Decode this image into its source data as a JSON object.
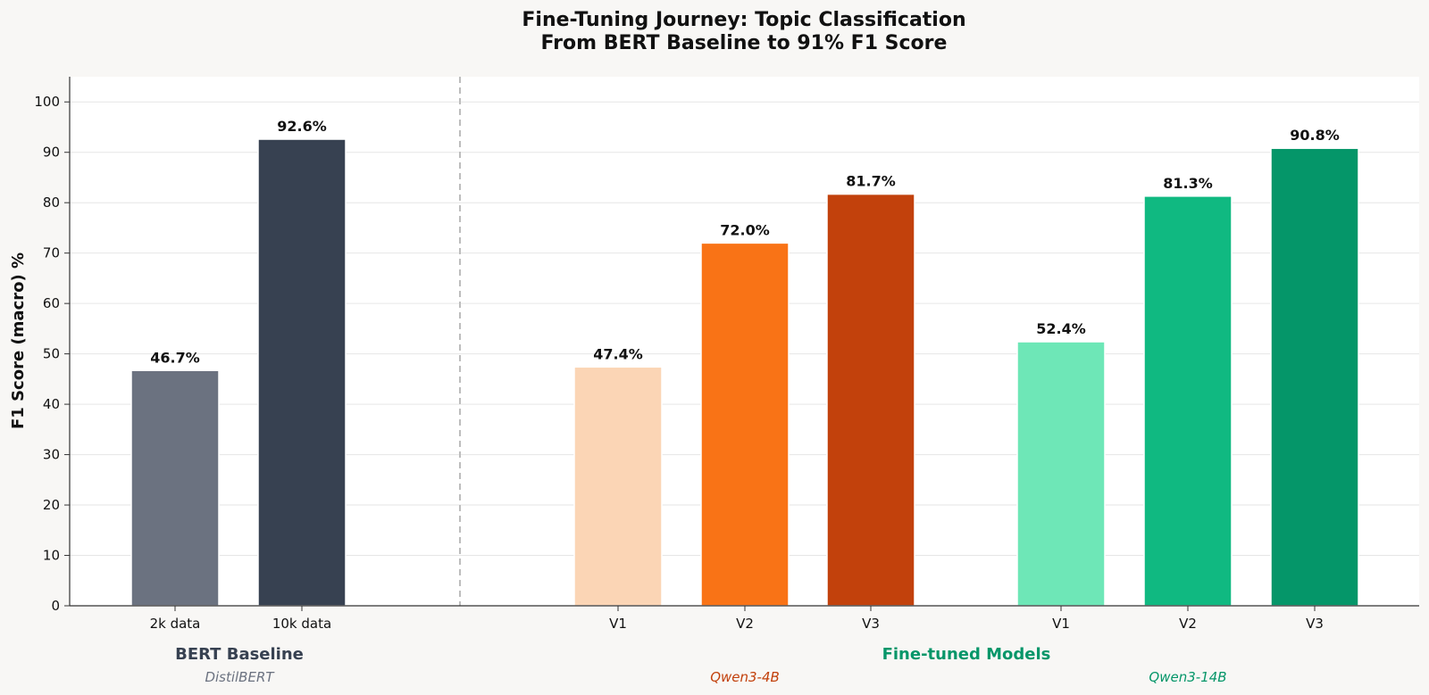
{
  "chart_data": {
    "type": "bar",
    "title": [
      "Fine-Tuning Journey: Topic Classification",
      "From BERT Baseline to 91% F1 Score"
    ],
    "ylabel": "F1 Score (macro) %",
    "ylim": [
      0,
      105
    ],
    "yticks": [
      0,
      10,
      20,
      30,
      40,
      50,
      60,
      70,
      80,
      90,
      100
    ],
    "grid": "horizontal",
    "groups": [
      {
        "label": "BERT Baseline",
        "sublabel": "DistilBERT",
        "label_color": "#374151",
        "sublabel_color": "#6b7280",
        "bars": [
          {
            "category": "2k data",
            "value": 46.7,
            "value_label": "46.7%",
            "color": "#6b7280"
          },
          {
            "category": "10k data",
            "value": 92.6,
            "value_label": "92.6%",
            "color": "#374151"
          }
        ]
      },
      {
        "sublabel": "Qwen3-4B",
        "sublabel_color": "#c2410c",
        "bars": [
          {
            "category": "V1",
            "value": 47.4,
            "value_label": "47.4%",
            "color": "#fbd5b5"
          },
          {
            "category": "V2",
            "value": 72.0,
            "value_label": "72.0%",
            "color": "#f97316"
          },
          {
            "category": "V3",
            "value": 81.7,
            "value_label": "81.7%",
            "color": "#c2410c"
          }
        ]
      },
      {
        "sublabel": "Qwen3-14B",
        "sublabel_color": "#059669",
        "bars": [
          {
            "category": "V1",
            "value": 52.4,
            "value_label": "52.4%",
            "color": "#6ee7b7"
          },
          {
            "category": "V2",
            "value": 81.3,
            "value_label": "81.3%",
            "color": "#10b981"
          },
          {
            "category": "V3",
            "value": 90.8,
            "value_label": "90.8%",
            "color": "#059669"
          }
        ]
      }
    ],
    "section_label": "Fine-tuned Models",
    "section_label_color": "#059669"
  }
}
